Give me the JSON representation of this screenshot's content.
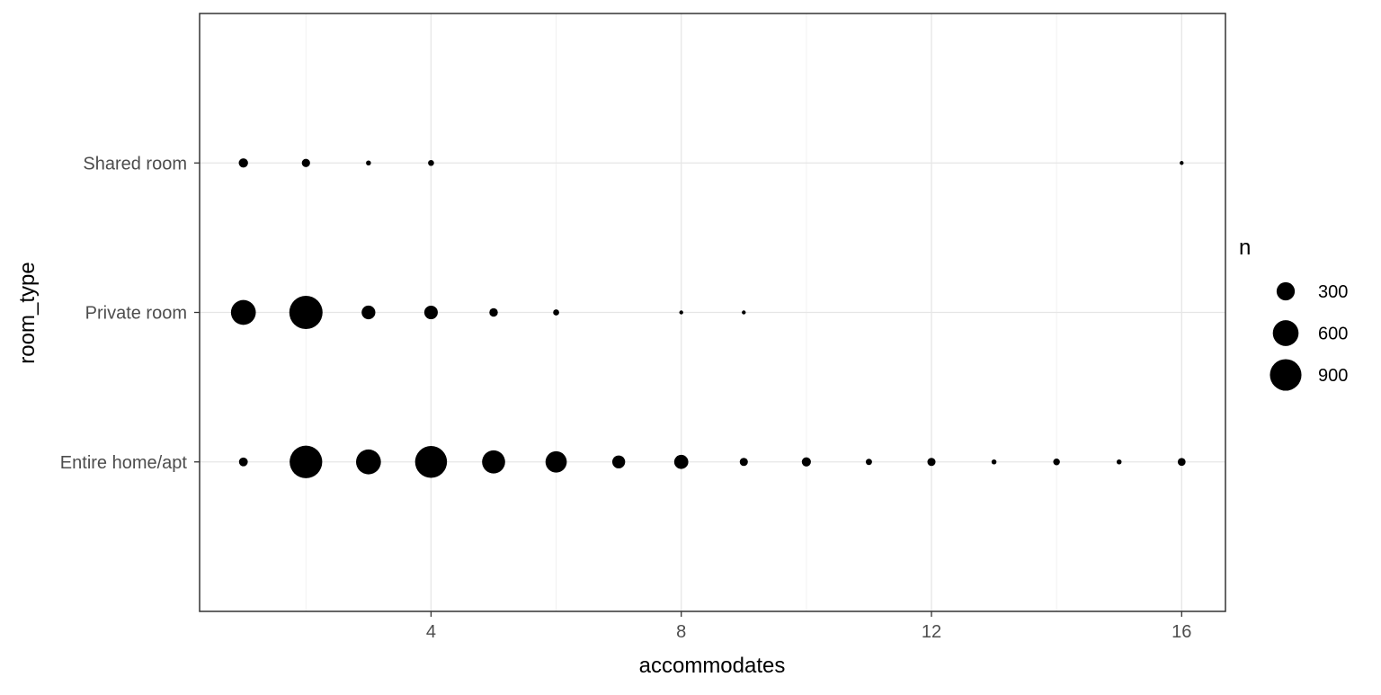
{
  "chart_data": {
    "type": "scatter",
    "title": "",
    "xlabel": "accommodates",
    "ylabel": "room_type",
    "xlim": [
      0.3,
      16.7
    ],
    "x_ticks": [
      4,
      8,
      12,
      16
    ],
    "y_categories": [
      "Entire home/apt",
      "Private room",
      "Shared room"
    ],
    "size_variable": "n",
    "size_max_value": 1000,
    "point_color": "#000000",
    "grid": true,
    "legend": {
      "title": "n",
      "position": "right",
      "entries": [
        {
          "label": "300",
          "value": 300
        },
        {
          "label": "600",
          "value": 600
        },
        {
          "label": "900",
          "value": 900
        }
      ]
    },
    "points": [
      {
        "room_type": "Entire home/apt",
        "accommodates": 1,
        "n": 70
      },
      {
        "room_type": "Entire home/apt",
        "accommodates": 2,
        "n": 960
      },
      {
        "room_type": "Entire home/apt",
        "accommodates": 3,
        "n": 560
      },
      {
        "room_type": "Entire home/apt",
        "accommodates": 4,
        "n": 920
      },
      {
        "room_type": "Entire home/apt",
        "accommodates": 5,
        "n": 480
      },
      {
        "room_type": "Entire home/apt",
        "accommodates": 6,
        "n": 410
      },
      {
        "room_type": "Entire home/apt",
        "accommodates": 7,
        "n": 150
      },
      {
        "room_type": "Entire home/apt",
        "accommodates": 8,
        "n": 180
      },
      {
        "room_type": "Entire home/apt",
        "accommodates": 9,
        "n": 60
      },
      {
        "room_type": "Entire home/apt",
        "accommodates": 10,
        "n": 75
      },
      {
        "room_type": "Entire home/apt",
        "accommodates": 11,
        "n": 35
      },
      {
        "room_type": "Entire home/apt",
        "accommodates": 12,
        "n": 60
      },
      {
        "room_type": "Entire home/apt",
        "accommodates": 13,
        "n": 22
      },
      {
        "room_type": "Entire home/apt",
        "accommodates": 14,
        "n": 40
      },
      {
        "room_type": "Entire home/apt",
        "accommodates": 15,
        "n": 22
      },
      {
        "room_type": "Entire home/apt",
        "accommodates": 16,
        "n": 55
      },
      {
        "room_type": "Private room",
        "accommodates": 1,
        "n": 560
      },
      {
        "room_type": "Private room",
        "accommodates": 2,
        "n": 1000
      },
      {
        "room_type": "Private room",
        "accommodates": 3,
        "n": 170
      },
      {
        "room_type": "Private room",
        "accommodates": 4,
        "n": 165
      },
      {
        "room_type": "Private room",
        "accommodates": 5,
        "n": 65
      },
      {
        "room_type": "Private room",
        "accommodates": 6,
        "n": 33
      },
      {
        "room_type": "Private room",
        "accommodates": 8,
        "n": 10
      },
      {
        "room_type": "Private room",
        "accommodates": 9,
        "n": 10
      },
      {
        "room_type": "Shared room",
        "accommodates": 1,
        "n": 78
      },
      {
        "room_type": "Shared room",
        "accommodates": 2,
        "n": 62
      },
      {
        "room_type": "Shared room",
        "accommodates": 3,
        "n": 22
      },
      {
        "room_type": "Shared room",
        "accommodates": 4,
        "n": 32
      },
      {
        "room_type": "Shared room",
        "accommodates": 16,
        "n": 10
      }
    ]
  }
}
